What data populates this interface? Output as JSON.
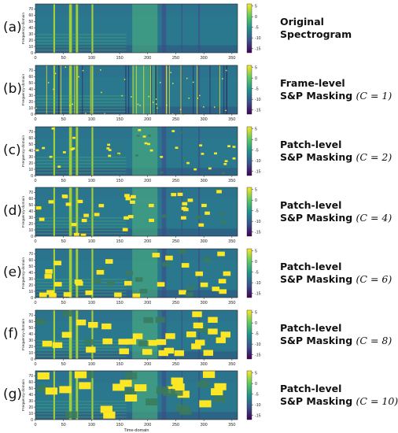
{
  "figure": {
    "xlabel": "Time-domain",
    "ylabel": "Frequency-domain",
    "xticks": [
      0,
      50,
      100,
      150,
      200,
      250,
      300,
      350
    ],
    "yticks": [
      0,
      10,
      20,
      30,
      40,
      50,
      60,
      70
    ],
    "colorbar_ticks": [
      5,
      0,
      -5,
      -10,
      -15
    ],
    "colormap": "viridis"
  },
  "panels": [
    {
      "label": "(a)",
      "line1": "Original",
      "line2": "Spectrogram",
      "c": null
    },
    {
      "label": "(b)",
      "line1": "Frame-level",
      "line2": "S&P Masking",
      "c": "(C = 1)"
    },
    {
      "label": "(c)",
      "line1": "Patch-level",
      "line2": "S&P Masking",
      "c": "(C = 2)"
    },
    {
      "label": "(d)",
      "line1": "Patch-level",
      "line2": "S&P Masking",
      "c": "(C = 4)"
    },
    {
      "label": "(e)",
      "line1": "Patch-level",
      "line2": "S&P Masking",
      "c": "(C = 6)"
    },
    {
      "label": "(f)",
      "line1": "Patch-level",
      "line2": "S&P Masking",
      "c": "(C = 8)"
    },
    {
      "label": "(g)",
      "line1": "Patch-level",
      "line2": "S&P Masking",
      "c": "(C = 10)"
    }
  ],
  "chart_data": {
    "type": "heatmap",
    "xlabel": "Time-domain",
    "ylabel": "Frequency-domain",
    "xlim": [
      0,
      360
    ],
    "ylim": [
      0,
      78
    ],
    "colorbar_range": [
      -17,
      6
    ],
    "mask_patch_size": [
      1,
      2,
      4,
      6,
      8,
      10
    ]
  }
}
